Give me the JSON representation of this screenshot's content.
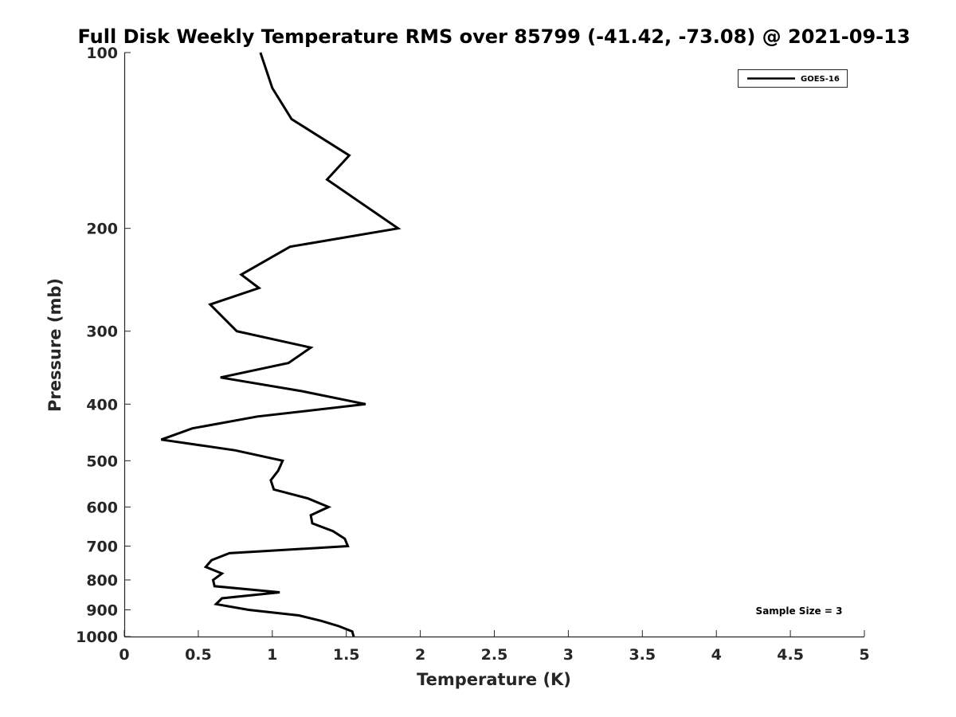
{
  "chart_data": {
    "type": "line",
    "title": "Full Disk Weekly Temperature RMS over 85799 (-41.42, -73.08) @ 2021-09-13",
    "xlabel": "Temperature (K)",
    "ylabel": "Pressure (mb)",
    "xlim": [
      0,
      5
    ],
    "ylim": [
      1000,
      100
    ],
    "y_scale": "log",
    "x_ticks": [
      0,
      0.5,
      1,
      1.5,
      2,
      2.5,
      3,
      3.5,
      4,
      4.5,
      5
    ],
    "x_tick_labels": [
      "0",
      "0.5",
      "1",
      "1.5",
      "2",
      "2.5",
      "3",
      "3.5",
      "4",
      "4.5",
      "5"
    ],
    "y_ticks": [
      100,
      200,
      300,
      400,
      500,
      600,
      700,
      800,
      900,
      1000
    ],
    "y_tick_labels": [
      "100",
      "200",
      "300",
      "400",
      "500",
      "600",
      "700",
      "800",
      "900",
      "1000"
    ],
    "grid": false,
    "legend_position": "top-right",
    "series": [
      {
        "name": "GOES-16",
        "color": "#000000",
        "points": [
          [
            0.92,
            100
          ],
          [
            1.0,
            115
          ],
          [
            1.13,
            130
          ],
          [
            1.52,
            150
          ],
          [
            1.37,
            165
          ],
          [
            1.85,
            200
          ],
          [
            1.12,
            215
          ],
          [
            0.79,
            240
          ],
          [
            0.91,
            253
          ],
          [
            0.58,
            270
          ],
          [
            0.76,
            300
          ],
          [
            1.26,
            320
          ],
          [
            1.11,
            340
          ],
          [
            0.65,
            360
          ],
          [
            1.2,
            380
          ],
          [
            1.63,
            400
          ],
          [
            0.9,
            420
          ],
          [
            0.46,
            440
          ],
          [
            0.25,
            460
          ],
          [
            0.75,
            480
          ],
          [
            1.07,
            500
          ],
          [
            1.04,
            520
          ],
          [
            0.99,
            540
          ],
          [
            1.01,
            560
          ],
          [
            1.24,
            580
          ],
          [
            1.38,
            600
          ],
          [
            1.26,
            620
          ],
          [
            1.27,
            640
          ],
          [
            1.41,
            660
          ],
          [
            1.49,
            680
          ],
          [
            1.51,
            700
          ],
          [
            0.71,
            720
          ],
          [
            0.59,
            740
          ],
          [
            0.55,
            760
          ],
          [
            0.66,
            780
          ],
          [
            0.6,
            800
          ],
          [
            0.61,
            820
          ],
          [
            1.05,
            840
          ],
          [
            0.66,
            860
          ],
          [
            0.62,
            880
          ],
          [
            0.84,
            900
          ],
          [
            1.18,
            920
          ],
          [
            1.33,
            940
          ],
          [
            1.45,
            960
          ],
          [
            1.54,
            980
          ],
          [
            1.55,
            1000
          ]
        ]
      }
    ],
    "annotation": "Sample Size = 3"
  }
}
